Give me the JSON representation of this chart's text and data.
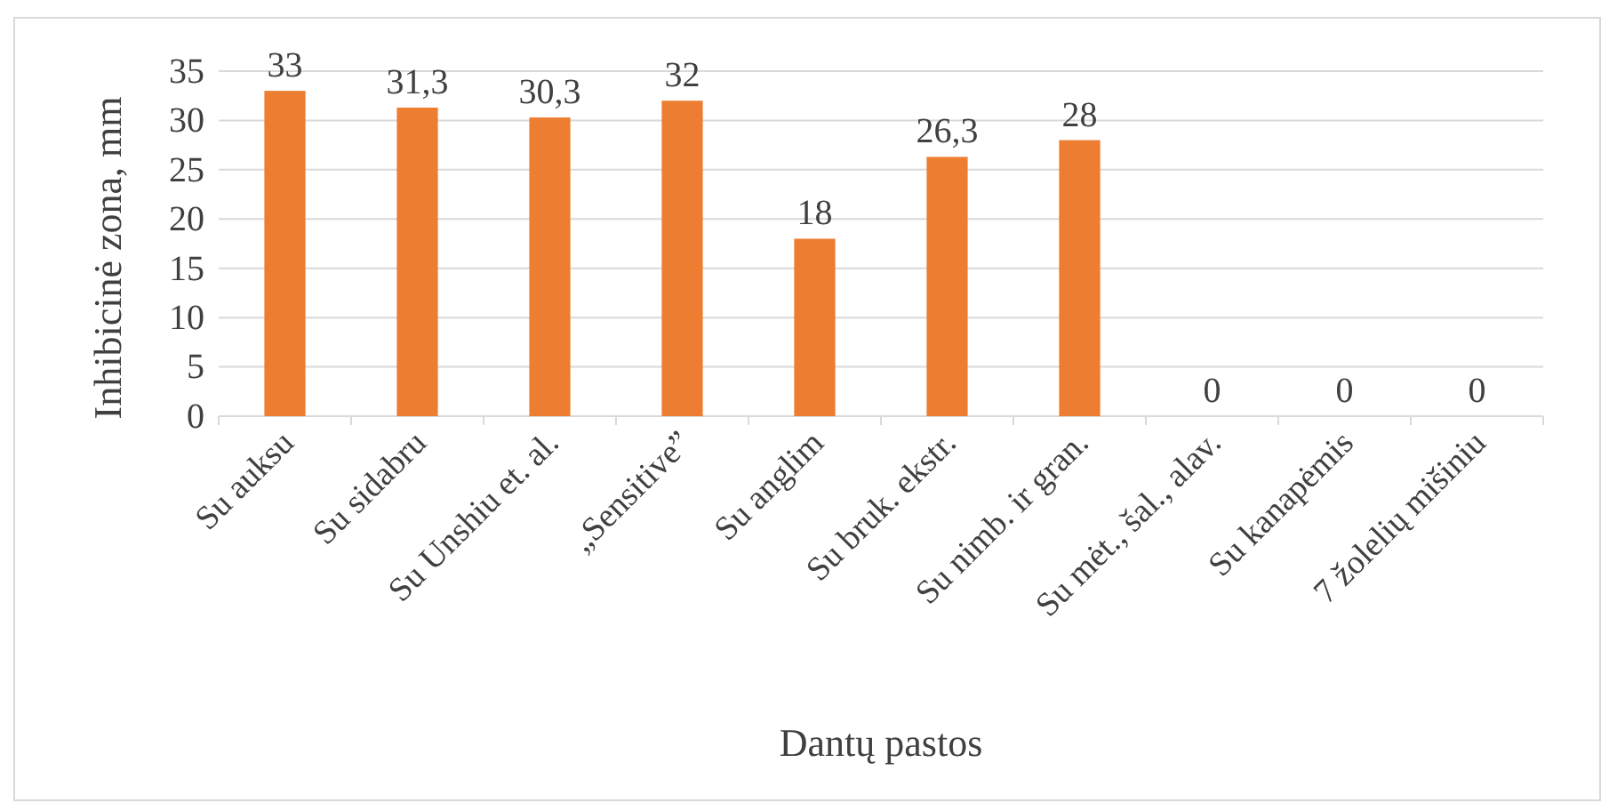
{
  "chart_data": {
    "type": "bar",
    "xlabel": "Dantų pastos",
    "ylabel": "Inhibicinė zona, mm",
    "categories": [
      "Su auksu",
      "Su sidabru",
      "Su Unshiu et. al.",
      "„Sensitive”",
      "Su anglim",
      "Su bruk. ekstr.",
      "Su nimb. ir gran.",
      "Su mėt., šal., alav.",
      "Su kanapėmis",
      "7 žolelių mišiniu"
    ],
    "values": [
      33,
      31.3,
      30.3,
      32,
      18,
      26.3,
      28,
      0,
      0,
      0
    ],
    "value_labels": [
      "33",
      "31,3",
      "30,3",
      "32",
      "18",
      "26,3",
      "28",
      "0",
      "0",
      "0"
    ],
    "color": "#ed7d31",
    "ylim": [
      0,
      35
    ],
    "yticks": [
      0,
      5,
      10,
      15,
      20,
      25,
      30,
      35
    ],
    "grid": "y"
  }
}
